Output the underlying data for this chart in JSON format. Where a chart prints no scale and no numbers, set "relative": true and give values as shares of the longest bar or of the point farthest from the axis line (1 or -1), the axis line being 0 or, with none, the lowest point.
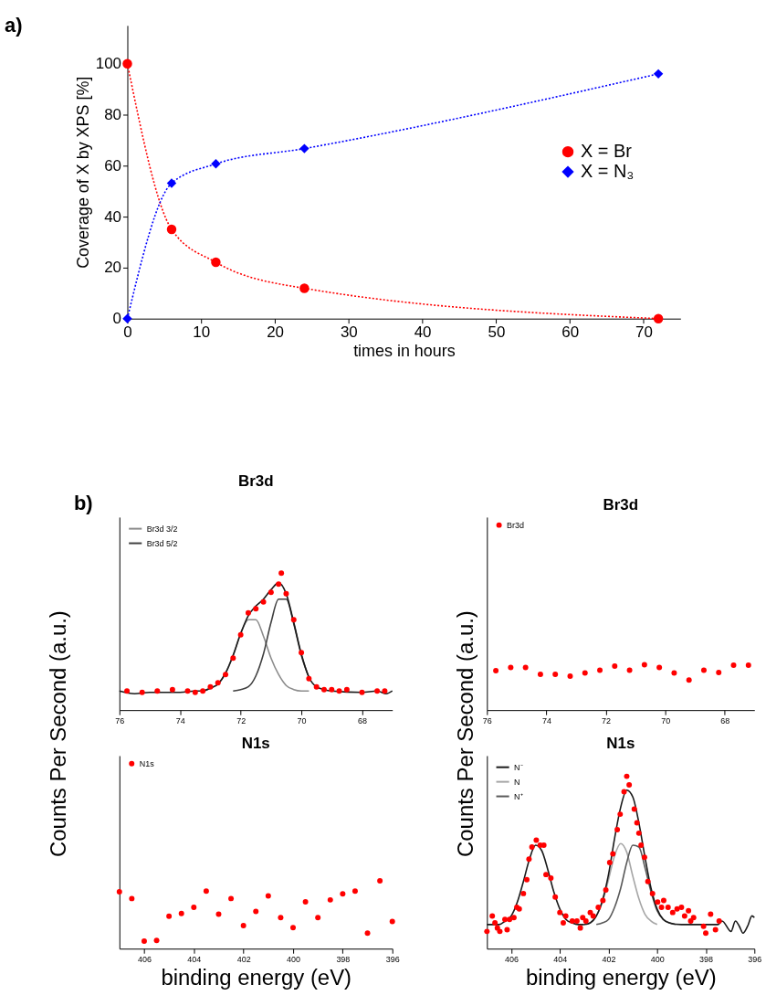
{
  "chart_data": [
    {
      "type": "line",
      "xlabel": "times in hours",
      "ylabel": "Coverage of X by XPS [%]",
      "annotations": [
        "a)"
      ],
      "x": [
        0,
        6,
        12,
        24,
        72
      ],
      "xlim": [
        0,
        75
      ],
      "xticks": [
        0,
        10,
        20,
        30,
        40,
        50,
        60,
        70
      ],
      "ylim": [
        0,
        115
      ],
      "yticks": [
        0,
        20,
        40,
        60,
        80,
        100
      ],
      "grid": false,
      "legend": "right",
      "line_style": "dotted",
      "series": [
        {
          "name": "X = Br",
          "color": "#ff0000",
          "marker": "circle",
          "values": [
            100,
            35,
            22.1,
            11.9,
            0
          ]
        },
        {
          "name": "X = N₃",
          "color": "#0000ff",
          "marker": "diamond",
          "values": [
            0,
            53.1,
            60.7,
            66.7,
            96
          ]
        }
      ]
    },
    {
      "type": "line",
      "title": "Br3d",
      "annotations": [
        "b)"
      ],
      "relative": true,
      "xlim": [
        76,
        67
      ],
      "xticks": [
        76,
        74,
        72,
        70,
        68
      ],
      "grid": false,
      "legend": "top left",
      "series": [
        {
          "name": "Br3d 3/2",
          "color": "#8c8c8c",
          "x": [
            73.25,
            73,
            72.75,
            72.5,
            72.25,
            72,
            71.75,
            71.5,
            71.25,
            71,
            70.75,
            70.5,
            70.25,
            70,
            69.75
          ],
          "values": [
            0.14,
            0.16,
            0.19,
            0.27,
            0.4,
            0.56,
            0.66,
            0.66,
            0.54,
            0.38,
            0.26,
            0.18,
            0.15,
            0.14,
            0.14
          ]
        },
        {
          "name": "Br3d 5/2",
          "color": "#404040",
          "x": [
            72.25,
            72,
            71.75,
            71.5,
            71.25,
            71,
            70.75,
            70.5,
            70.25,
            70,
            69.75
          ],
          "values": [
            0.14,
            0.15,
            0.17,
            0.25,
            0.41,
            0.64,
            0.81,
            0.81,
            0.63,
            0.4,
            0.24
          ]
        },
        {
          "color": "#1a1a1a",
          "x": [
            76,
            75.5,
            75,
            74,
            73.5,
            73.25,
            73,
            72.75,
            72.5,
            72.25,
            72,
            71.75,
            71.5,
            71.25,
            71,
            70.75,
            70.5,
            70.25,
            70,
            69.75,
            69.5,
            69.25,
            69,
            68,
            67.5,
            67.2,
            67
          ],
          "values": [
            0.14,
            0.12,
            0.13,
            0.13,
            0.14,
            0.14,
            0.16,
            0.19,
            0.27,
            0.4,
            0.56,
            0.69,
            0.76,
            0.81,
            0.88,
            0.93,
            0.85,
            0.64,
            0.41,
            0.24,
            0.17,
            0.15,
            0.14,
            0.13,
            0.14,
            0.12,
            0.14
          ]
        },
        {
          "type": "scatter",
          "color": "#ff0000",
          "x": [
            75.75,
            75.25,
            74.75,
            74.25,
            73.75,
            73.5,
            73.25,
            73,
            72.75,
            72.5,
            72.25,
            72,
            71.75,
            71.5,
            71.25,
            71,
            70.75,
            70.66,
            70.5,
            70.25,
            70,
            69.75,
            69.5,
            69.25,
            69,
            68.75,
            68.5,
            68,
            67.5,
            67.25
          ],
          "values": [
            0.14,
            0.13,
            0.14,
            0.15,
            0.14,
            0.13,
            0.14,
            0.17,
            0.2,
            0.26,
            0.38,
            0.55,
            0.71,
            0.74,
            0.79,
            0.86,
            0.92,
            1.0,
            0.85,
            0.66,
            0.42,
            0.23,
            0.17,
            0.15,
            0.15,
            0.14,
            0.15,
            0.13,
            0.14,
            0.14
          ]
        }
      ]
    },
    {
      "type": "scatter",
      "title": "N1s",
      "xlabel": "binding energy (eV)",
      "ylabel": "Counts Per Second (a.u.)",
      "relative": true,
      "xlim": [
        407,
        396
      ],
      "xticks": [
        406,
        404,
        402,
        400,
        398,
        396
      ],
      "grid": false,
      "legend": "top left",
      "series": [
        {
          "name": "N1s",
          "color": "#ff0000",
          "x": [
            407,
            406.5,
            406,
            405.5,
            405,
            404.5,
            404,
            403.5,
            403,
            402.5,
            402,
            401.5,
            401,
            400.5,
            400,
            399.5,
            399,
            398.5,
            398,
            397.5,
            397,
            396.5,
            396
          ],
          "values": [
            0.84,
            0.74,
            0.11,
            0.12,
            0.48,
            0.52,
            0.61,
            0.85,
            0.51,
            0.74,
            0.34,
            0.55,
            0.78,
            0.46,
            0.31,
            0.69,
            0.46,
            0.72,
            0.81,
            0.85,
            0.23,
            1.0,
            0.4
          ]
        }
      ]
    },
    {
      "type": "scatter",
      "title": "Br3d",
      "relative": true,
      "xlim": [
        76,
        67
      ],
      "xticks": [
        76,
        74,
        72,
        70,
        68
      ],
      "grid": false,
      "legend": "top left",
      "series": [
        {
          "name": "Br3d",
          "color": "#ff0000",
          "x": [
            75.7,
            75.2,
            74.7,
            74.2,
            73.7,
            73.2,
            72.7,
            72.2,
            71.7,
            71.2,
            70.7,
            70.2,
            69.7,
            69.2,
            68.7,
            68.2,
            67.7,
            67.2
          ],
          "values": [
            0.87,
            0.94,
            0.94,
            0.79,
            0.79,
            0.75,
            0.82,
            0.88,
            0.97,
            0.88,
            1.0,
            0.94,
            0.82,
            0.66,
            0.88,
            0.83,
            0.99,
            0.99
          ]
        }
      ]
    },
    {
      "type": "line",
      "title": "N1s",
      "xlabel": "binding energy (eV)",
      "ylabel": "Counts Per Second (a.u.)",
      "relative": true,
      "xlim": [
        407,
        396
      ],
      "xticks": [
        406,
        404,
        402,
        400,
        398,
        396
      ],
      "grid": false,
      "legend": "top left",
      "series": [
        {
          "name": "N⁻",
          "color": "#1a1a1a",
          "x": [
            407,
            406.75,
            406.5,
            406.25,
            406,
            405.75,
            405.5,
            405.25,
            405,
            404.75,
            404.5,
            404.25,
            404,
            403.75,
            403.5,
            403.25,
            403
          ],
          "values": [
            0.14,
            0.14,
            0.14,
            0.16,
            0.19,
            0.27,
            0.39,
            0.52,
            0.6,
            0.57,
            0.46,
            0.33,
            0.23,
            0.17,
            0.15,
            0.14,
            0.14
          ]
        },
        {
          "name": "N",
          "color": "#a6a6a6",
          "x": [
            403,
            402.75,
            402.5,
            402.25,
            402,
            401.75,
            401.5,
            401.25,
            401,
            400.75,
            400.5,
            400.25,
            400
          ],
          "values": [
            0.14,
            0.15,
            0.19,
            0.27,
            0.4,
            0.54,
            0.61,
            0.56,
            0.42,
            0.29,
            0.2,
            0.16,
            0.14
          ]
        },
        {
          "name": "N⁺",
          "color": "#595959",
          "x": [
            402.5,
            402.25,
            402,
            401.75,
            401.5,
            401.25,
            401,
            400.75,
            400.5,
            400.25,
            400,
            399.75,
            399.5,
            399.25
          ],
          "values": [
            0.14,
            0.15,
            0.17,
            0.24,
            0.35,
            0.5,
            0.6,
            0.59,
            0.47,
            0.33,
            0.22,
            0.17,
            0.15,
            0.14
          ]
        },
        {
          "color": "#1a1a1a",
          "x": [
            403,
            402.75,
            402.5,
            402.25,
            402,
            401.75,
            401.5,
            401.25,
            401,
            400.75,
            400.5,
            400.25,
            400,
            399.75,
            399.5,
            399,
            398,
            397.5,
            397.33,
            396.96,
            396.78,
            396.62,
            396.47,
            396.28,
            396.1,
            396
          ],
          "values": [
            0.14,
            0.15,
            0.19,
            0.28,
            0.43,
            0.64,
            0.82,
            0.92,
            0.88,
            0.73,
            0.53,
            0.35,
            0.23,
            0.17,
            0.15,
            0.14,
            0.14,
            0.14,
            0.16,
            0.1,
            0.16,
            0.13,
            0.09,
            0.13,
            0.19,
            0.18
          ]
        },
        {
          "type": "scatter",
          "color": "#ff0000",
          "x": [
            407.0,
            406.78,
            406.67,
            406.57,
            406.47,
            406.26,
            406.17,
            406.07,
            405.89,
            405.77,
            405.67,
            405.5,
            405.36,
            405.27,
            405.15,
            404.97,
            404.81,
            404.66,
            404.57,
            404.37,
            404.19,
            404.0,
            403.86,
            403.76,
            403.49,
            403.3,
            403.16,
            403.06,
            402.93,
            402.75,
            402.63,
            402.42,
            402.23,
            402.11,
            401.95,
            401.82,
            401.64,
            401.52,
            401.36,
            401.25,
            401.15,
            400.94,
            400.83,
            400.75,
            400.66,
            400.52,
            400.38,
            400.19,
            399.98,
            399.82,
            399.73,
            399.55,
            399.36,
            399.18,
            399.0,
            398.87,
            398.71,
            398.62,
            398.5,
            398.09,
            398.0,
            397.8,
            397.6,
            397.45
          ],
          "values": [
            0.1,
            0.19,
            0.15,
            0.12,
            0.1,
            0.17,
            0.11,
            0.17,
            0.18,
            0.24,
            0.23,
            0.32,
            0.4,
            0.52,
            0.59,
            0.63,
            0.6,
            0.6,
            0.43,
            0.41,
            0.3,
            0.21,
            0.15,
            0.19,
            0.16,
            0.16,
            0.12,
            0.18,
            0.16,
            0.21,
            0.19,
            0.24,
            0.28,
            0.34,
            0.5,
            0.55,
            0.69,
            0.78,
            0.91,
            1.0,
            0.95,
            0.81,
            0.73,
            0.67,
            0.6,
            0.53,
            0.39,
            0.32,
            0.27,
            0.24,
            0.28,
            0.24,
            0.21,
            0.23,
            0.24,
            0.19,
            0.22,
            0.16,
            0.18,
            0.13,
            0.09,
            0.2,
            0.11,
            0.16
          ]
        }
      ]
    }
  ]
}
